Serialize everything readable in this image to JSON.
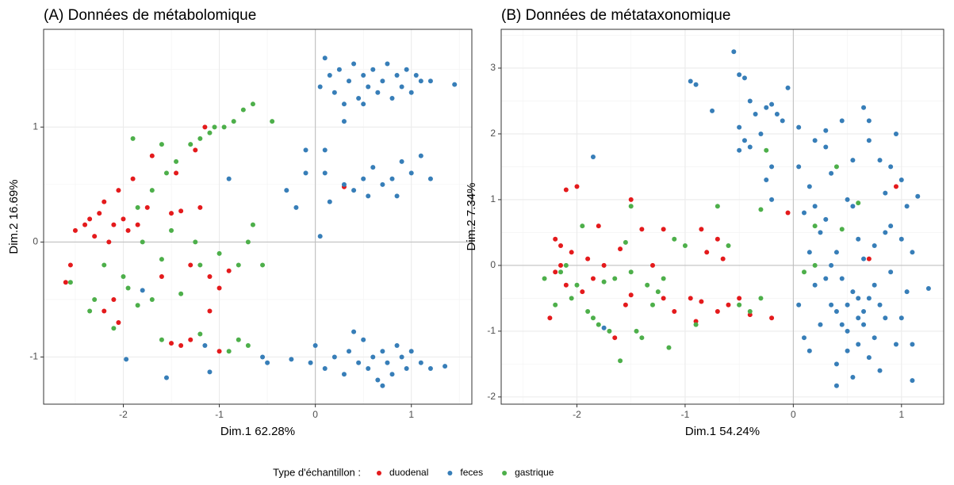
{
  "chart_data": [
    {
      "type": "scatter",
      "title": "(A) Données de métabolomique",
      "xlabel": "Dim.1 62.28%",
      "ylabel": "Dim.2 16.69%",
      "xlim": [
        -2.83,
        1.63
      ],
      "ylim": [
        -1.41,
        1.85
      ],
      "xticks": [
        -2,
        -1,
        0,
        1
      ],
      "yticks": [
        -1,
        0,
        1
      ],
      "grid": true,
      "minor_grid": true,
      "hline": 0,
      "vline": 0,
      "legend": "bottom",
      "legend_title": "Type d'échantillon :",
      "series": [
        {
          "name": "duodenal",
          "color": "#e41a1c",
          "x": [
            -2.6,
            -2.55,
            -2.5,
            -2.4,
            -2.35,
            -2.3,
            -2.25,
            -2.2,
            -2.15,
            -2.1,
            -2.05,
            -2.0,
            -1.95,
            -1.9,
            -1.85,
            -1.75,
            -1.7,
            -1.5,
            -1.4,
            -1.45,
            -1.25,
            -1.15,
            -1.2,
            -1.3,
            -1.1,
            -0.9,
            -1.0,
            -2.1,
            -2.2,
            -2.05,
            -1.6,
            -1.4,
            -1.3,
            -1.0,
            -1.5,
            0.3,
            -1.1
          ],
          "values": [
            -0.35,
            -0.2,
            0.1,
            0.15,
            0.2,
            0.05,
            0.25,
            0.35,
            0.0,
            0.15,
            0.45,
            0.2,
            0.1,
            0.55,
            0.15,
            0.3,
            0.75,
            0.25,
            0.27,
            0.6,
            0.8,
            1.0,
            0.3,
            -0.2,
            -0.3,
            -0.25,
            -0.4,
            -0.5,
            -0.6,
            -0.7,
            -0.3,
            -0.9,
            -0.85,
            -0.95,
            -0.88,
            0.48,
            -0.6
          ]
        },
        {
          "name": "feces",
          "color": "#377eb8",
          "x": [
            0.05,
            0.1,
            0.15,
            0.2,
            0.25,
            0.3,
            0.35,
            0.4,
            0.45,
            0.5,
            0.55,
            0.6,
            0.65,
            0.7,
            0.75,
            0.8,
            0.85,
            0.9,
            0.95,
            1.0,
            1.05,
            1.1,
            1.2,
            1.45,
            0.5,
            0.3,
            0.3,
            0.4,
            0.5,
            0.55,
            0.6,
            0.7,
            0.8,
            0.9,
            1.0,
            1.1,
            1.2,
            0.85,
            -0.05,
            0.0,
            0.1,
            0.2,
            0.3,
            0.35,
            0.45,
            0.5,
            0.55,
            0.6,
            0.65,
            0.7,
            0.75,
            0.8,
            0.85,
            0.9,
            0.95,
            1.0,
            1.1,
            1.2,
            1.35,
            0.4,
            0.7,
            -0.25,
            -0.5,
            -0.55,
            -0.9,
            -0.3,
            -0.2,
            0.05,
            0.15,
            -0.1,
            0.1,
            -1.97,
            -1.55,
            -1.1,
            -1.8,
            -1.15,
            0.1,
            -0.1
          ],
          "values": [
            1.35,
            1.6,
            1.45,
            1.3,
            1.5,
            1.2,
            1.4,
            1.55,
            1.25,
            1.45,
            1.35,
            1.5,
            1.3,
            1.4,
            1.55,
            1.25,
            1.45,
            1.35,
            1.5,
            1.3,
            1.45,
            1.4,
            1.4,
            1.37,
            1.2,
            1.05,
            0.5,
            0.45,
            0.55,
            0.4,
            0.65,
            0.5,
            0.55,
            0.7,
            0.6,
            0.75,
            0.55,
            0.4,
            -1.05,
            -0.9,
            -1.1,
            -1.0,
            -1.15,
            -0.95,
            -1.05,
            -0.85,
            -1.1,
            -1.0,
            -1.2,
            -0.95,
            -1.05,
            -1.15,
            -0.9,
            -1.0,
            -1.1,
            -0.95,
            -1.05,
            -1.1,
            -1.08,
            -0.78,
            -1.25,
            -1.02,
            -1.05,
            -1.0,
            0.55,
            0.45,
            0.3,
            0.05,
            0.35,
            0.6,
            0.6,
            -1.02,
            -1.18,
            -1.13,
            -0.42,
            -0.9,
            0.8,
            0.8
          ]
        },
        {
          "name": "gastrique",
          "color": "#4daf4a",
          "x": [
            -2.55,
            -2.35,
            -2.3,
            -2.1,
            -2.0,
            -1.95,
            -1.85,
            -1.8,
            -1.7,
            -1.6,
            -1.55,
            -1.5,
            -1.45,
            -1.4,
            -1.3,
            -1.2,
            -1.1,
            -1.05,
            -0.95,
            -0.85,
            -0.75,
            -0.65,
            -0.45,
            -1.25,
            -1.2,
            -1.0,
            -0.8,
            -0.7,
            -0.65,
            -1.6,
            -1.2,
            -0.9,
            -0.8,
            -0.7,
            -1.85,
            -1.7,
            -2.2,
            -1.9,
            -1.6,
            -0.55
          ],
          "values": [
            -0.35,
            -0.6,
            -0.5,
            -0.75,
            -0.3,
            -0.4,
            -0.55,
            0.0,
            0.45,
            -0.15,
            0.6,
            0.1,
            0.7,
            -0.45,
            0.85,
            0.9,
            0.95,
            1.0,
            1.0,
            1.05,
            1.15,
            1.2,
            1.05,
            0.0,
            -0.2,
            -0.1,
            -0.2,
            0.0,
            0.15,
            -0.85,
            -0.8,
            -0.95,
            -0.85,
            -0.9,
            0.3,
            -0.5,
            -0.2,
            0.9,
            0.85,
            -0.2
          ]
        }
      ]
    },
    {
      "type": "scatter",
      "title": "(B) Données de métataxonomique",
      "xlabel": "Dim.1 54.24%",
      "ylabel": "Dim.2 7.34%",
      "xlim": [
        -2.7,
        1.39
      ],
      "ylim": [
        -2.11,
        3.59
      ],
      "xticks": [
        -2,
        -1,
        0,
        1
      ],
      "yticks": [
        -2,
        -1,
        0,
        1,
        2,
        3
      ],
      "grid": true,
      "minor_grid": true,
      "hline": 0,
      "vline": 0,
      "series": [
        {
          "color": "#e41a1c",
          "x": [
            -2.25,
            -2.2,
            -2.2,
            -2.15,
            -2.15,
            -2.1,
            -2.1,
            -2.05,
            -2.0,
            -1.95,
            -1.9,
            -1.85,
            -1.8,
            -1.75,
            -1.65,
            -1.6,
            -1.55,
            -1.5,
            -1.5,
            -1.4,
            -1.3,
            -1.2,
            -1.2,
            -1.1,
            -0.95,
            -0.9,
            -0.85,
            -0.7,
            -0.7,
            -0.6,
            -0.5,
            -0.4,
            -0.2,
            -0.85,
            -0.8,
            -0.65,
            -0.05,
            0.7,
            0.95
          ],
          "values": [
            -0.8,
            0.4,
            -0.1,
            0.3,
            0.0,
            1.15,
            -0.3,
            0.2,
            1.2,
            -0.4,
            0.1,
            -0.2,
            0.6,
            0.0,
            -1.1,
            0.25,
            -0.6,
            -0.45,
            1.0,
            0.55,
            0.0,
            -0.5,
            0.55,
            -0.7,
            -0.5,
            -0.85,
            -0.55,
            0.4,
            -0.7,
            -0.6,
            -0.5,
            -0.75,
            -0.8,
            0.55,
            0.2,
            0.1,
            0.8,
            0.1,
            1.2
          ]
        },
        {
          "color": "#377eb8",
          "x": [
            -0.95,
            -0.9,
            -0.75,
            -0.55,
            -0.5,
            -0.45,
            -0.4,
            -0.35,
            -0.3,
            -0.25,
            -0.2,
            -0.15,
            -0.1,
            -0.05,
            -0.5,
            -0.45,
            -0.4,
            -0.5,
            -0.2,
            -0.25,
            -0.2,
            -1.85,
            -1.75,
            0.05,
            0.05,
            0.1,
            0.15,
            0.2,
            0.25,
            0.3,
            0.35,
            0.4,
            0.45,
            0.5,
            0.55,
            0.6,
            0.65,
            0.7,
            0.75,
            0.8,
            0.85,
            0.9,
            0.95,
            1.0,
            1.05,
            1.1,
            0.05,
            0.1,
            0.15,
            0.2,
            0.25,
            0.3,
            0.35,
            0.4,
            0.45,
            0.5,
            0.55,
            0.6,
            0.65,
            0.7,
            0.75,
            0.8,
            0.85,
            0.9,
            0.95,
            1.0,
            1.05,
            0.5,
            0.55,
            0.6,
            0.65,
            0.7,
            0.45,
            0.75,
            0.8,
            0.6,
            0.5,
            0.4,
            0.65,
            0.3,
            0.2,
            0.35,
            0.85,
            0.9,
            1.0,
            0.7,
            0.3,
            1.1,
            0.4,
            1.1,
            1.25,
            1.15,
            0.55,
            0.15
          ],
          "values": [
            2.8,
            2.75,
            2.35,
            3.25,
            2.9,
            2.85,
            2.5,
            2.3,
            2.0,
            2.4,
            2.45,
            2.3,
            2.2,
            2.7,
            2.1,
            1.9,
            1.8,
            1.75,
            1.5,
            1.3,
            1.0,
            1.65,
            -0.95,
            2.1,
            1.5,
            0.8,
            1.2,
            -0.3,
            0.5,
            1.8,
            -0.6,
            0.2,
            2.2,
            -1.0,
            0.9,
            -0.5,
            2.4,
            -1.4,
            0.3,
            1.6,
            -0.8,
            0.6,
            -1.2,
            1.3,
            -0.4,
            0.2,
            -0.6,
            -1.1,
            0.2,
            1.9,
            -0.9,
            0.7,
            1.4,
            -1.5,
            -0.2,
            1.0,
            -1.7,
            0.4,
            -0.9,
            1.9,
            -0.3,
            -1.6,
            1.1,
            -0.1,
            2.0,
            -0.8,
            0.9,
            -0.6,
            -0.4,
            -0.8,
            -0.7,
            -0.5,
            -0.9,
            -1.1,
            -0.6,
            -1.2,
            -1.3,
            -0.7,
            0.1,
            -0.2,
            0.9,
            0.0,
            0.5,
            1.5,
            0.4,
            2.2,
            2.05,
            -1.2,
            -1.83,
            -1.75,
            -0.35,
            1.05,
            1.6,
            -1.3
          ]
        },
        {
          "color": "#4daf4a",
          "x": [
            -2.3,
            -2.2,
            -2.15,
            -2.1,
            -2.05,
            -2.0,
            -1.95,
            -1.9,
            -1.85,
            -1.8,
            -1.75,
            -1.7,
            -1.65,
            -1.6,
            -1.55,
            -1.5,
            -1.5,
            -1.45,
            -1.4,
            -1.35,
            -1.3,
            -1.25,
            -1.2,
            -1.15,
            -1.1,
            -1.0,
            -0.9,
            -0.7,
            -0.6,
            -0.5,
            -0.4,
            -0.3,
            -0.25,
            0.1,
            0.2,
            0.4,
            0.45,
            0.6,
            0.2,
            -0.3
          ],
          "values": [
            -0.2,
            -0.6,
            -0.1,
            0.0,
            -0.5,
            -0.3,
            0.6,
            -0.7,
            -0.8,
            -0.9,
            -0.25,
            -1.0,
            -0.2,
            -1.45,
            0.35,
            0.9,
            -0.1,
            -1.0,
            -1.1,
            -0.3,
            -0.6,
            -0.4,
            -0.2,
            -1.25,
            0.4,
            0.3,
            -0.9,
            0.9,
            0.3,
            -0.6,
            -0.7,
            -0.5,
            1.75,
            -0.1,
            0.6,
            1.5,
            0.55,
            0.95,
            0.0,
            0.85
          ]
        }
      ]
    }
  ]
}
